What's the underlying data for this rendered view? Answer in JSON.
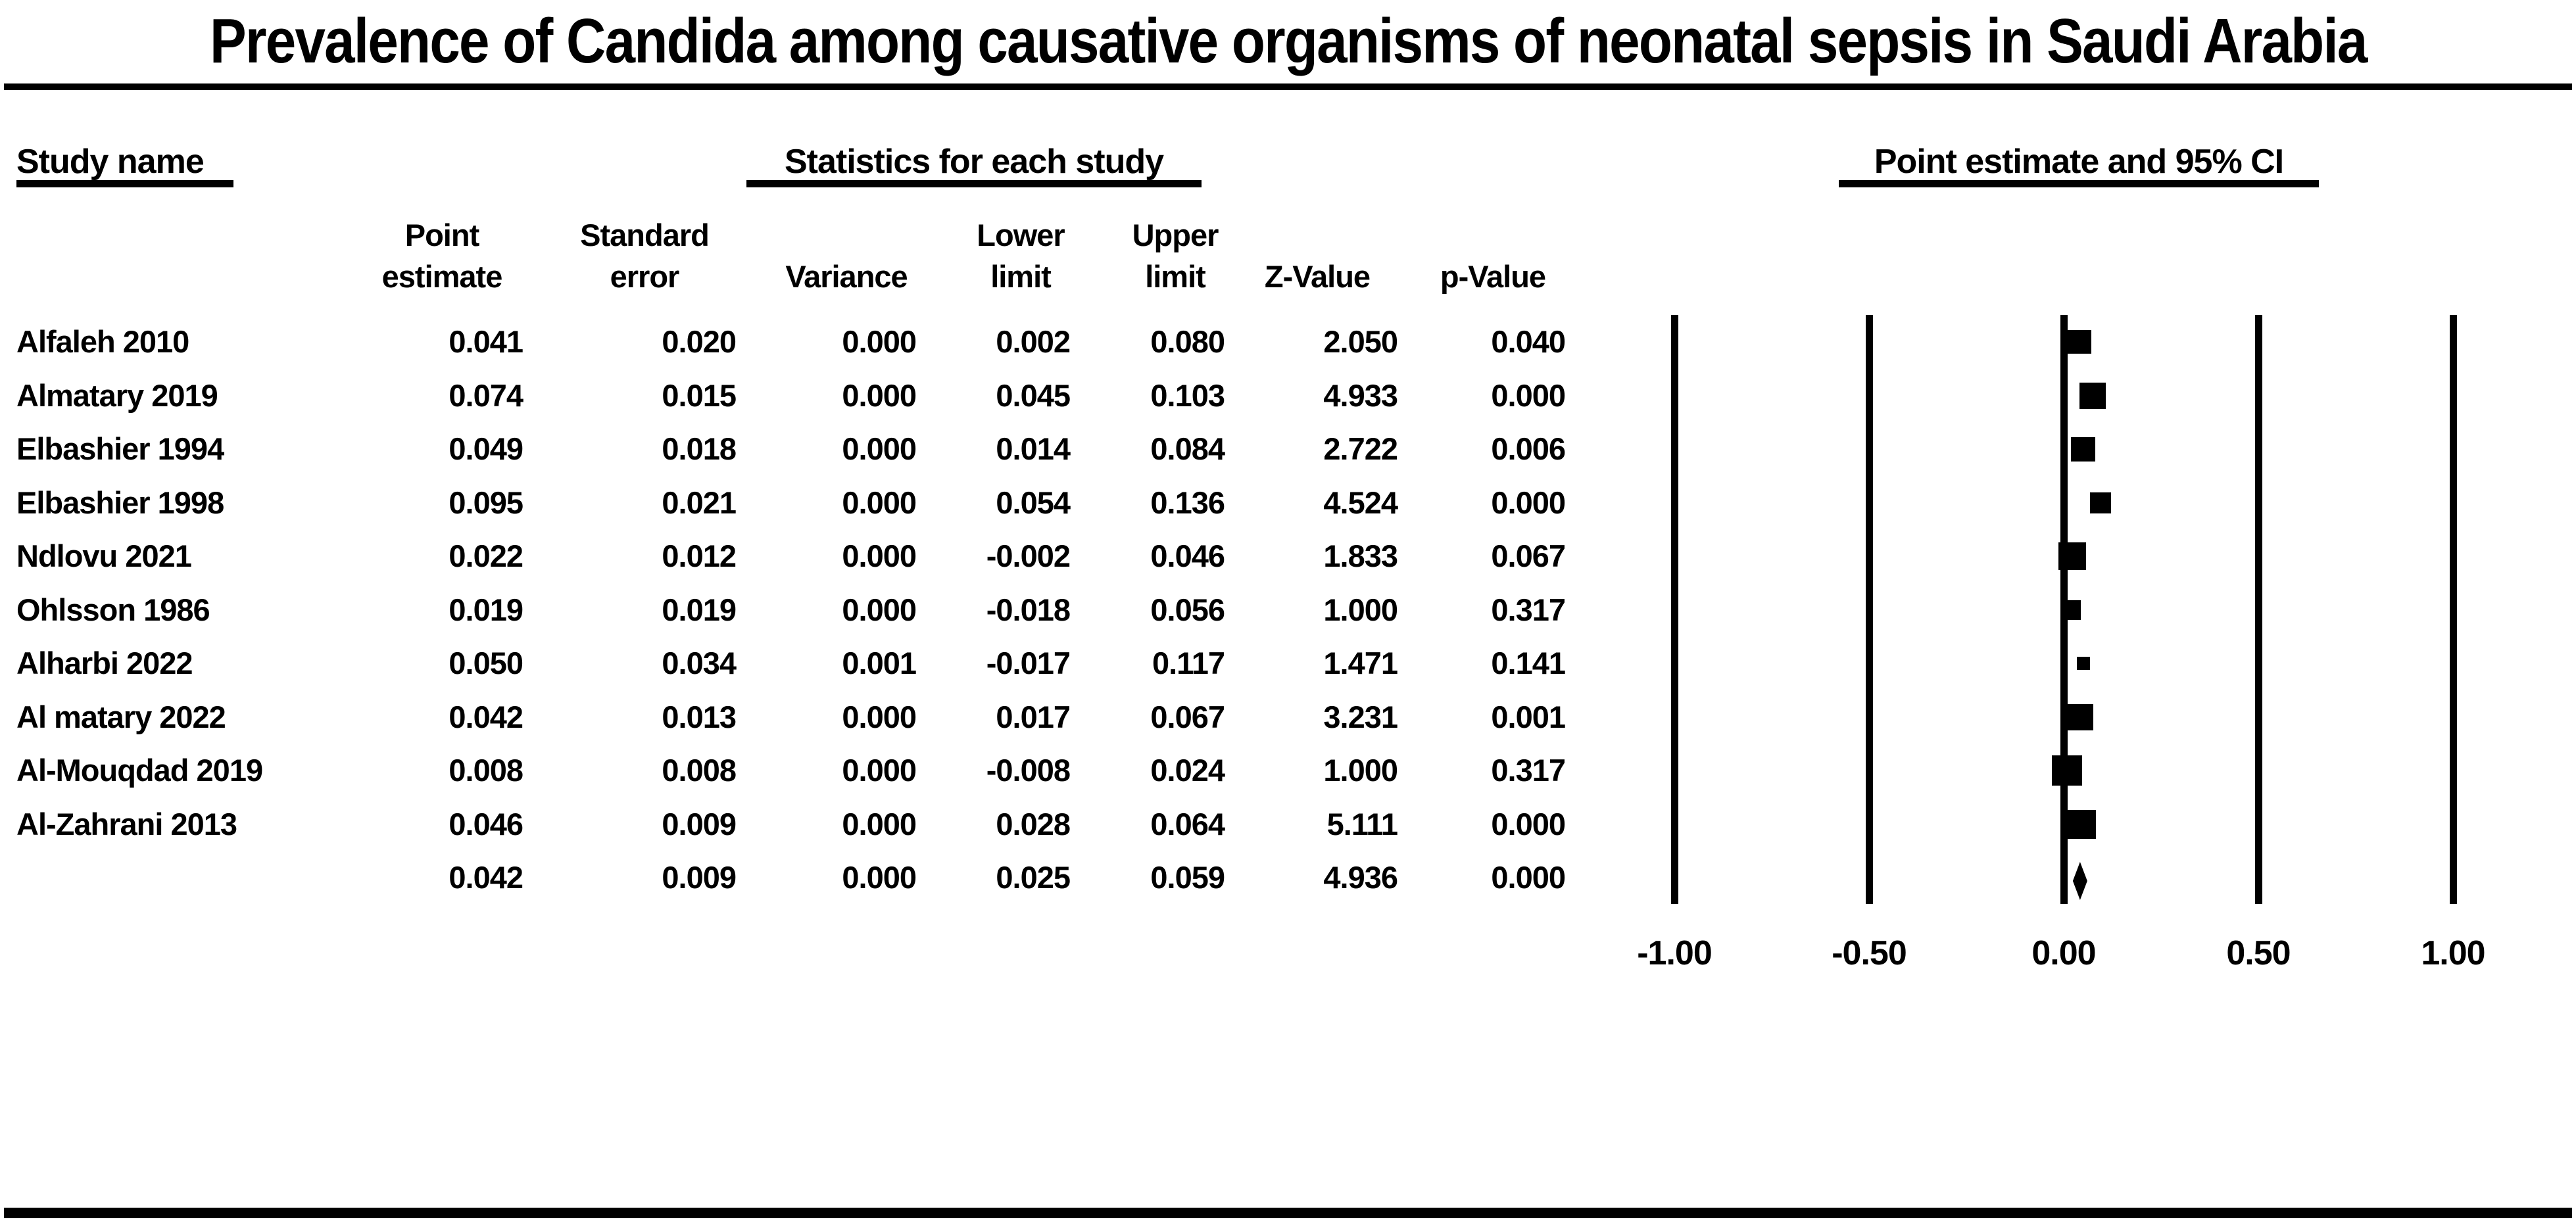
{
  "title": "Prevalence of Candida among causative organisms of neonatal sepsis in Saudi Arabia",
  "colors": {
    "ink": "#000000",
    "paper": "#ffffff"
  },
  "section_headers": {
    "study": "Study name",
    "statistics": "Statistics for each study",
    "plot": "Point estimate and 95% CI"
  },
  "column_headers": [
    {
      "line1": "Point",
      "line2": "estimate"
    },
    {
      "line1": "Standard",
      "line2": "error"
    },
    {
      "line1": "",
      "line2": "Variance"
    },
    {
      "line1": "Lower",
      "line2": "limit"
    },
    {
      "line1": "Upper",
      "line2": "limit"
    },
    {
      "line1": "",
      "line2": "Z-Value"
    },
    {
      "line1": "",
      "line2": "p-Value"
    }
  ],
  "chart_data": {
    "type": "forest",
    "title": "Prevalence of Candida among causative organisms of neonatal sepsis in Saudi Arabia",
    "x_axis": {
      "tick_labels": [
        "-1.00",
        "-0.50",
        "0.00",
        "0.50",
        "1.00"
      ],
      "tick_values": [
        -1,
        -0.5,
        0,
        0.5,
        1
      ],
      "range": [
        -1.25,
        1.3
      ],
      "grid": "vertical-lines"
    },
    "legend_position": "none",
    "studies": [
      {
        "name": "Alfaleh 2010",
        "point_estimate": "0.041",
        "standard_error": "0.020",
        "variance": "0.000",
        "lower_limit": "0.002",
        "upper_limit": "0.080",
        "z_value": "2.050",
        "p_value": "0.040",
        "marker_px": 36
      },
      {
        "name": "Almatary 2019",
        "point_estimate": "0.074",
        "standard_error": "0.015",
        "variance": "0.000",
        "lower_limit": "0.045",
        "upper_limit": "0.103",
        "z_value": "4.933",
        "p_value": "0.000",
        "marker_px": 40
      },
      {
        "name": "Elbashier 1994",
        "point_estimate": "0.049",
        "standard_error": "0.018",
        "variance": "0.000",
        "lower_limit": "0.014",
        "upper_limit": "0.084",
        "z_value": "2.722",
        "p_value": "0.006",
        "marker_px": 37
      },
      {
        "name": "Elbashier 1998",
        "point_estimate": "0.095",
        "standard_error": "0.021",
        "variance": "0.000",
        "lower_limit": "0.054",
        "upper_limit": "0.136",
        "z_value": "4.524",
        "p_value": "0.000",
        "marker_px": 32
      },
      {
        "name": "Ndlovu 2021",
        "point_estimate": "0.022",
        "standard_error": "0.012",
        "variance": "0.000",
        "lower_limit": "-0.002",
        "upper_limit": "0.046",
        "z_value": "1.833",
        "p_value": "0.067",
        "marker_px": 42
      },
      {
        "name": "Ohlsson 1986",
        "point_estimate": "0.019",
        "standard_error": "0.019",
        "variance": "0.000",
        "lower_limit": "-0.018",
        "upper_limit": "0.056",
        "z_value": "1.000",
        "p_value": "0.317",
        "marker_px": 30
      },
      {
        "name": "Alharbi 2022",
        "point_estimate": "0.050",
        "standard_error": "0.034",
        "variance": "0.001",
        "lower_limit": "-0.017",
        "upper_limit": "0.117",
        "z_value": "1.471",
        "p_value": "0.141",
        "marker_px": 20
      },
      {
        "name": "Al matary 2022",
        "point_estimate": "0.042",
        "standard_error": "0.013",
        "variance": "0.000",
        "lower_limit": "0.017",
        "upper_limit": "0.067",
        "z_value": "3.231",
        "p_value": "0.001",
        "marker_px": 40
      },
      {
        "name": "Al-Mouqdad 2019",
        "point_estimate": "0.008",
        "standard_error": "0.008",
        "variance": "0.000",
        "lower_limit": "-0.008",
        "upper_limit": "0.024",
        "z_value": "1.000",
        "p_value": "0.317",
        "marker_px": 46
      },
      {
        "name": "Al-Zahrani 2013",
        "point_estimate": "0.046",
        "standard_error": "0.009",
        "variance": "0.000",
        "lower_limit": "0.028",
        "upper_limit": "0.064",
        "z_value": "5.111",
        "p_value": "0.000",
        "marker_px": 44
      }
    ],
    "summary": {
      "point_estimate": "0.042",
      "standard_error": "0.009",
      "variance": "0.000",
      "lower_limit": "0.025",
      "upper_limit": "0.059",
      "z_value": "4.936",
      "p_value": "0.000",
      "marker": "diamond"
    }
  }
}
